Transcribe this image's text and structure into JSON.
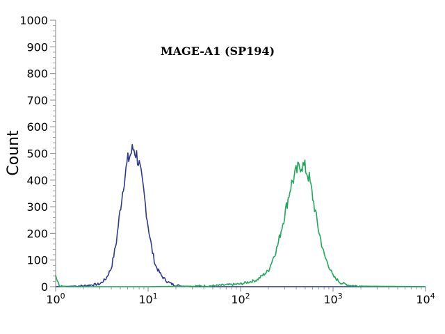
{
  "chart_data": {
    "type": "area",
    "title": "MAGE-A1 (SP194)",
    "ylabel": "Count",
    "xlabel": "",
    "xscale": "log",
    "xlim": [
      1,
      10000
    ],
    "ylim": [
      0,
      1000
    ],
    "y_ticks": [
      0,
      100,
      200,
      300,
      400,
      500,
      600,
      700,
      800,
      900,
      1000
    ],
    "x_ticks": [
      {
        "base": "10",
        "exp": "0",
        "value": 1
      },
      {
        "base": "10",
        "exp": "1",
        "value": 10
      },
      {
        "base": "10",
        "exp": "2",
        "value": 100
      },
      {
        "base": "10",
        "exp": "3",
        "value": 1000
      },
      {
        "base": "10",
        "exp": "4",
        "value": 10000
      }
    ],
    "grid": false,
    "series": [
      {
        "color": "#2b3990",
        "x": [
          1,
          2,
          3,
          3.5,
          4,
          4.5,
          5,
          5.5,
          6,
          6.5,
          7,
          7.5,
          8,
          9,
          10,
          11,
          12,
          14,
          16,
          18,
          20,
          25,
          30
        ],
        "y": [
          0,
          3,
          10,
          30,
          70,
          160,
          290,
          400,
          470,
          500,
          520,
          495,
          460,
          350,
          230,
          140,
          80,
          40,
          20,
          10,
          5,
          2,
          0
        ]
      },
      {
        "color": "#1ea85a",
        "x": [
          1,
          1.05,
          1.1,
          1.3,
          10,
          50,
          100,
          150,
          200,
          250,
          300,
          350,
          400,
          450,
          500,
          550,
          600,
          700,
          800,
          1000,
          1200,
          1500,
          2000,
          10000
        ],
        "y": [
          45,
          20,
          5,
          0,
          0,
          3,
          10,
          25,
          60,
          150,
          270,
          380,
          430,
          460,
          445,
          410,
          340,
          210,
          120,
          40,
          15,
          5,
          2,
          0
        ]
      }
    ]
  }
}
